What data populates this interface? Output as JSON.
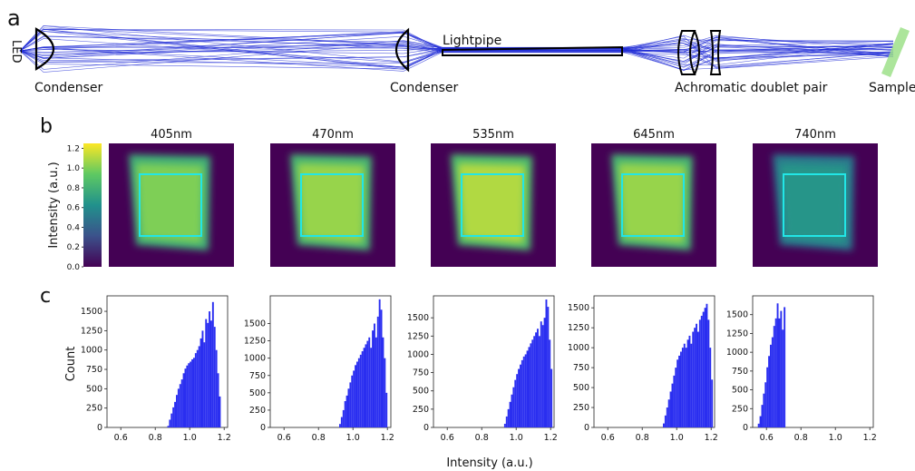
{
  "panel_labels": {
    "a": "a",
    "b": "b",
    "c": "c"
  },
  "optics": {
    "led_label": "LED",
    "condenser1_label": "Condenser",
    "condenser2_label": "Condenser",
    "lightpipe_label": "Lightpipe",
    "doublet_label": "Achromatic doublet pair",
    "sample_label": "Sample",
    "ray_color": "#1f2bd6",
    "sample_color": "#9ee08a"
  },
  "colorbar": {
    "label": "Intensity (a.u.)",
    "ticks": [
      "0.0",
      "0.2",
      "0.4",
      "0.6",
      "0.8",
      "1.0",
      "1.2"
    ]
  },
  "images": [
    {
      "wavelength": "405nm",
      "level": 1.0
    },
    {
      "wavelength": "470nm",
      "level": 1.05
    },
    {
      "wavelength": "535nm",
      "level": 1.1
    },
    {
      "wavelength": "645nm",
      "level": 1.05
    },
    {
      "wavelength": "740nm",
      "level": 0.65
    }
  ],
  "chart_data": [
    {
      "type": "bar",
      "x": [
        0.87,
        0.88,
        0.89,
        0.9,
        0.91,
        0.92,
        0.93,
        0.94,
        0.95,
        0.96,
        0.97,
        0.98,
        0.99,
        1.0,
        1.01,
        1.02,
        1.03,
        1.04,
        1.05,
        1.06,
        1.07,
        1.08,
        1.09,
        1.1,
        1.11,
        1.12,
        1.13,
        1.14,
        1.15,
        1.16,
        1.17
      ],
      "values": [
        20,
        100,
        180,
        260,
        330,
        420,
        500,
        560,
        620,
        700,
        760,
        800,
        830,
        850,
        880,
        900,
        960,
        1000,
        1050,
        1150,
        1250,
        1100,
        1400,
        1350,
        1500,
        1380,
        1620,
        1300,
        1000,
        700,
        400
      ],
      "xticks": [
        "0.6",
        "0.8",
        "1.0",
        "1.2"
      ],
      "yticks": [
        "0",
        "250",
        "500",
        "750",
        "1000",
        "1250",
        "1500"
      ],
      "xlim": [
        0.52,
        1.22
      ],
      "ylim": [
        0,
        1700
      ],
      "ylabel": "Count"
    },
    {
      "type": "bar",
      "x": [
        0.92,
        0.93,
        0.94,
        0.95,
        0.96,
        0.97,
        0.98,
        0.99,
        1.0,
        1.01,
        1.02,
        1.03,
        1.04,
        1.05,
        1.06,
        1.07,
        1.08,
        1.09,
        1.1,
        1.11,
        1.12,
        1.13,
        1.14,
        1.15,
        1.16,
        1.17,
        1.18,
        1.19
      ],
      "values": [
        50,
        150,
        250,
        380,
        460,
        560,
        650,
        750,
        820,
        900,
        950,
        1000,
        1050,
        1100,
        1150,
        1200,
        1250,
        1300,
        1150,
        1400,
        1500,
        1300,
        1600,
        1850,
        1700,
        1300,
        1000,
        500
      ],
      "xticks": [
        "0.6",
        "0.8",
        "1.0",
        "1.2"
      ],
      "yticks": [
        "0",
        "250",
        "500",
        "750",
        "1000",
        "1250",
        "1500"
      ],
      "xlim": [
        0.52,
        1.22
      ],
      "ylim": [
        0,
        1900
      ],
      "ylabel": ""
    },
    {
      "type": "bar",
      "x": [
        0.93,
        0.94,
        0.95,
        0.96,
        0.97,
        0.98,
        0.99,
        1.0,
        1.01,
        1.02,
        1.03,
        1.04,
        1.05,
        1.06,
        1.07,
        1.08,
        1.09,
        1.1,
        1.11,
        1.12,
        1.13,
        1.14,
        1.15,
        1.16,
        1.17,
        1.18,
        1.19,
        1.2
      ],
      "values": [
        50,
        150,
        250,
        350,
        450,
        550,
        650,
        730,
        800,
        860,
        920,
        970,
        1000,
        1050,
        1100,
        1150,
        1200,
        1250,
        1300,
        1350,
        1250,
        1450,
        1400,
        1500,
        1750,
        1650,
        1200,
        800
      ],
      "xticks": [
        "0.6",
        "0.8",
        "1.0",
        "1.2"
      ],
      "yticks": [
        "0",
        "250",
        "500",
        "750",
        "1000",
        "1250",
        "1500"
      ],
      "xlim": [
        0.52,
        1.22
      ],
      "ylim": [
        0,
        1800
      ],
      "ylabel": ""
    },
    {
      "type": "bar",
      "x": [
        0.92,
        0.93,
        0.94,
        0.95,
        0.96,
        0.97,
        0.98,
        0.99,
        1.0,
        1.01,
        1.02,
        1.03,
        1.04,
        1.05,
        1.06,
        1.07,
        1.08,
        1.09,
        1.1,
        1.11,
        1.12,
        1.13,
        1.14,
        1.15,
        1.16,
        1.17,
        1.18,
        1.19,
        1.2
      ],
      "values": [
        50,
        150,
        250,
        350,
        450,
        550,
        650,
        750,
        850,
        900,
        950,
        1000,
        1050,
        1000,
        1100,
        1150,
        1050,
        1200,
        1250,
        1300,
        1200,
        1350,
        1400,
        1450,
        1500,
        1550,
        1350,
        1000,
        600
      ],
      "xticks": [
        "0.6",
        "0.8",
        "1.0",
        "1.2"
      ],
      "yticks": [
        "0",
        "250",
        "500",
        "750",
        "1000",
        "1250",
        "1500"
      ],
      "xlim": [
        0.52,
        1.22
      ],
      "ylim": [
        0,
        1650
      ],
      "ylabel": ""
    },
    {
      "type": "bar",
      "x": [
        0.55,
        0.56,
        0.57,
        0.58,
        0.59,
        0.6,
        0.61,
        0.62,
        0.63,
        0.64,
        0.65,
        0.66,
        0.67,
        0.68,
        0.69,
        0.7
      ],
      "values": [
        50,
        150,
        300,
        450,
        600,
        800,
        950,
        1100,
        1200,
        1350,
        1450,
        1650,
        1450,
        1550,
        1300,
        1600
      ],
      "xticks": [
        "0.6",
        "0.8",
        "1.0",
        "1.2"
      ],
      "yticks": [
        "0",
        "250",
        "500",
        "750",
        "1000",
        "1250",
        "1500"
      ],
      "xlim": [
        0.52,
        1.22
      ],
      "ylim": [
        0,
        1750
      ],
      "ylabel": ""
    }
  ],
  "xlabel": "Intensity (a.u.)"
}
